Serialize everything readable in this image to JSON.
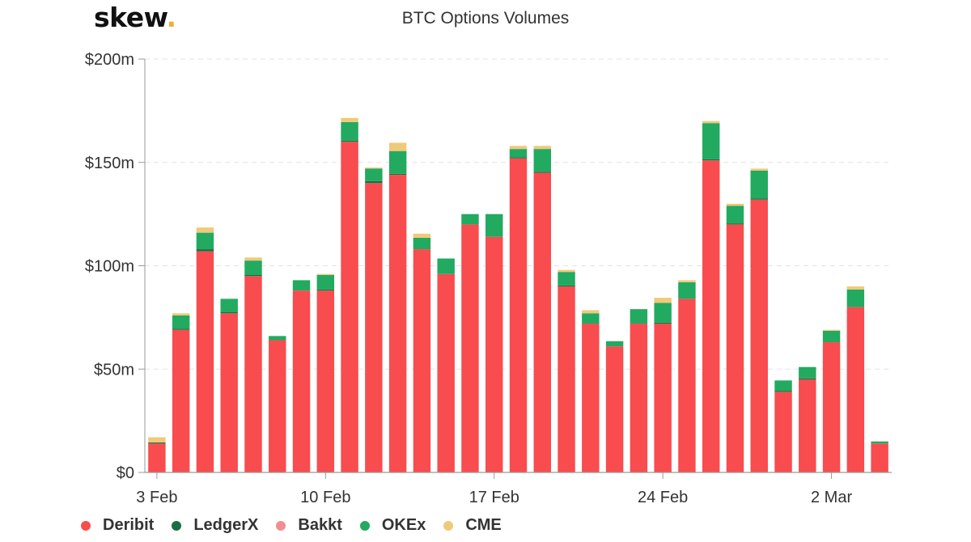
{
  "logo": {
    "text": "skew",
    "dot": "."
  },
  "title": "BTC Options Volumes",
  "colors": {
    "Deribit": "#f84c4f",
    "LedgerX": "#1a6e43",
    "Bakkt": "#f28e90",
    "OKEx": "#22aa60",
    "CME": "#f0c97a"
  },
  "chart_data": {
    "type": "bar",
    "stacked": true,
    "title": "BTC Options Volumes",
    "unit": "$m",
    "ylim": [
      0,
      200
    ],
    "yticks": [
      0,
      50,
      100,
      150,
      200
    ],
    "ytick_labels": [
      "$0",
      "$50m",
      "$100m",
      "$150m",
      "$200m"
    ],
    "grid": true,
    "legend_position": "bottom-left",
    "categories": [
      "3 Feb",
      "4 Feb",
      "5 Feb",
      "6 Feb",
      "7 Feb",
      "8 Feb",
      "9 Feb",
      "10 Feb",
      "11 Feb",
      "12 Feb",
      "13 Feb",
      "14 Feb",
      "15 Feb",
      "16 Feb",
      "17 Feb",
      "18 Feb",
      "19 Feb",
      "20 Feb",
      "21 Feb",
      "22 Feb",
      "23 Feb",
      "24 Feb",
      "25 Feb",
      "26 Feb",
      "27 Feb",
      "28 Feb",
      "29 Feb",
      "1 Mar",
      "2 Mar",
      "3 Mar",
      "4 Mar"
    ],
    "xtick_labels": [
      {
        "index": 0,
        "label": "3 Feb"
      },
      {
        "index": 7,
        "label": "10 Feb"
      },
      {
        "index": 14,
        "label": "17 Feb"
      },
      {
        "index": 21,
        "label": "24 Feb"
      },
      {
        "index": 28,
        "label": "2 Mar"
      }
    ],
    "series": [
      {
        "name": "Deribit",
        "values": [
          14,
          69,
          107,
          77,
          95,
          64,
          88,
          88,
          160,
          140,
          144,
          108,
          96,
          120,
          114,
          152,
          145,
          90,
          72,
          61,
          72,
          72,
          84,
          151,
          120,
          132,
          39,
          45,
          63,
          80,
          14
        ]
      },
      {
        "name": "LedgerX",
        "values": [
          0.5,
          0.5,
          1,
          0.5,
          0.5,
          0,
          0,
          0.5,
          0.5,
          1,
          0.5,
          0,
          0,
          0,
          0,
          0.5,
          0.5,
          0.5,
          0,
          0,
          0,
          0.5,
          0,
          0.5,
          0.5,
          0.5,
          0.5,
          0.5,
          0,
          0,
          0
        ]
      },
      {
        "name": "Bakkt",
        "values": [
          0,
          0,
          0,
          0,
          0,
          0,
          0,
          0,
          0,
          0,
          0,
          0,
          0,
          0,
          0,
          0,
          0,
          0,
          0,
          0,
          0,
          0,
          0,
          0,
          0,
          0,
          0,
          0,
          0,
          0,
          0
        ]
      },
      {
        "name": "OKEx",
        "values": [
          0,
          6.5,
          8,
          6.5,
          7,
          2,
          5,
          7,
          9,
          6,
          11,
          5.5,
          7.5,
          5,
          11,
          4,
          11,
          6.5,
          5,
          2.5,
          7,
          9.5,
          8,
          17.5,
          8.5,
          13.5,
          5,
          5.5,
          5.5,
          8.5,
          1
        ]
      },
      {
        "name": "CME",
        "values": [
          2.5,
          1,
          2.5,
          0,
          1.5,
          0,
          0,
          0.5,
          2,
          0.5,
          4,
          2,
          0,
          0,
          0,
          1.5,
          1.5,
          1,
          1.5,
          0,
          0,
          2.5,
          1,
          1,
          1,
          1,
          0,
          0,
          0.5,
          1.5,
          0
        ]
      }
    ]
  }
}
